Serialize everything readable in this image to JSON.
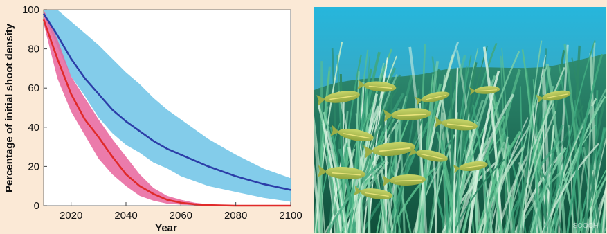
{
  "chart_data": {
    "type": "line",
    "xlabel": "Year",
    "ylabel": "Percentage of initial shoot density",
    "xlim": [
      2010,
      2100
    ],
    "ylim": [
      0,
      100
    ],
    "x_ticks": [
      "2020",
      "2040",
      "2060",
      "2080",
      "2100"
    ],
    "y_ticks": [
      "0",
      "20",
      "40",
      "60",
      "80",
      "100"
    ],
    "grid": false,
    "series": [
      {
        "color": "#e02a2a",
        "band_color": "#e8649c",
        "x": [
          2010,
          2015,
          2020,
          2025,
          2030,
          2035,
          2040,
          2045,
          2050,
          2055,
          2060,
          2065,
          2070,
          2080,
          2090,
          2100
        ],
        "y": [
          95,
          75,
          57,
          44,
          35,
          25,
          16,
          10,
          6,
          3,
          1.5,
          0.7,
          0.3,
          0,
          0,
          0
        ],
        "upper": [
          100,
          85,
          66,
          55,
          44,
          34,
          25,
          16,
          9,
          5,
          3,
          1.5,
          0.7,
          0.2,
          0,
          0
        ],
        "lower": [
          93,
          65,
          48,
          36,
          24,
          16,
          10,
          5,
          2.5,
          1,
          0.5,
          0.2,
          0,
          0,
          0,
          0
        ]
      },
      {
        "color": "#2c3ea8",
        "band_color": "#6dc3e6",
        "x": [
          2010,
          2015,
          2020,
          2025,
          2030,
          2035,
          2040,
          2045,
          2050,
          2055,
          2060,
          2070,
          2080,
          2090,
          2100
        ],
        "y": [
          98,
          87,
          75,
          65,
          57,
          49,
          43,
          38,
          33,
          29,
          26,
          20,
          15,
          11,
          8
        ],
        "upper": [
          100,
          100,
          94,
          88,
          82,
          75,
          68,
          62,
          55,
          49,
          44,
          34,
          26,
          19,
          14
        ],
        "lower": [
          98,
          81,
          66,
          56,
          45,
          37,
          31,
          27,
          22,
          19,
          15,
          10,
          7,
          4,
          2
        ]
      }
    ]
  },
  "photo": {
    "watermark": "SOOCHI"
  }
}
